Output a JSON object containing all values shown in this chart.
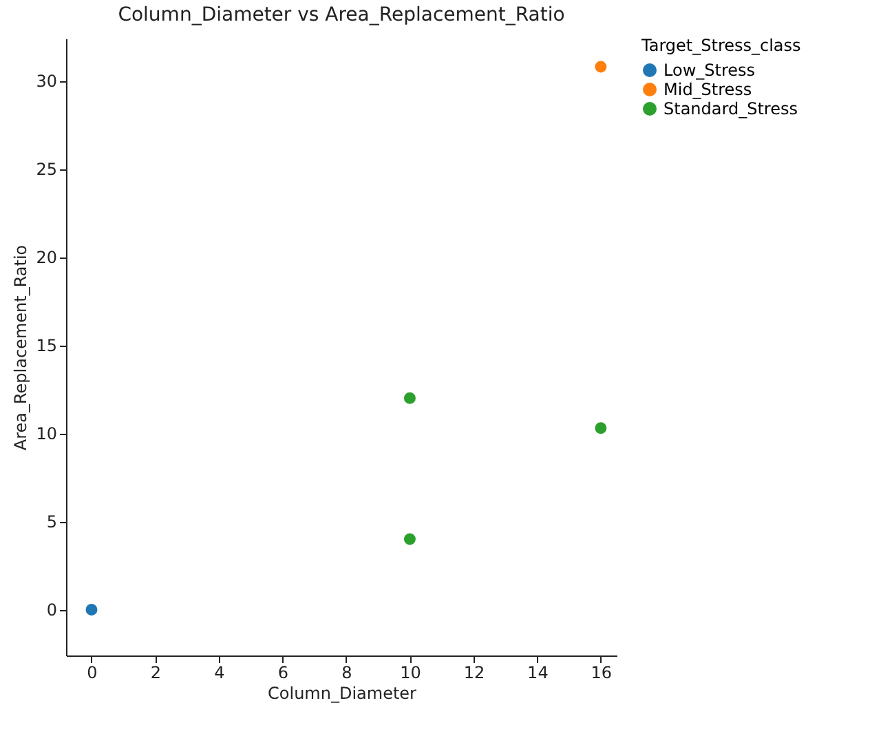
{
  "chart_data": {
    "type": "scatter",
    "title": "Column_Diameter vs Area_Replacement_Ratio",
    "xlabel": "Column_Diameter",
    "ylabel": "Area_Replacement_Ratio",
    "legend_title": "Target_Stress_class",
    "legend": "right",
    "marker": "circle",
    "grid": false,
    "xlim": [
      -0.8,
      16.5
    ],
    "xticks": [
      0,
      2,
      4,
      6,
      8,
      10,
      12,
      14,
      16
    ],
    "ylim": [
      -2.6,
      32.4
    ],
    "yticks": [
      0,
      5,
      10,
      15,
      20,
      25,
      30
    ],
    "series": [
      {
        "name": "Low_Stress",
        "color": "#1f77b4",
        "x": [
          0
        ],
        "values": [
          0
        ]
      },
      {
        "name": "Mid_Stress",
        "color": "#ff7f0e",
        "x": [
          16
        ],
        "values": [
          30.8
        ]
      },
      {
        "name": "Standard_Stress",
        "color": "#2ca02c",
        "x": [
          10,
          16,
          10
        ],
        "values": [
          12,
          10.3,
          4
        ]
      }
    ]
  }
}
